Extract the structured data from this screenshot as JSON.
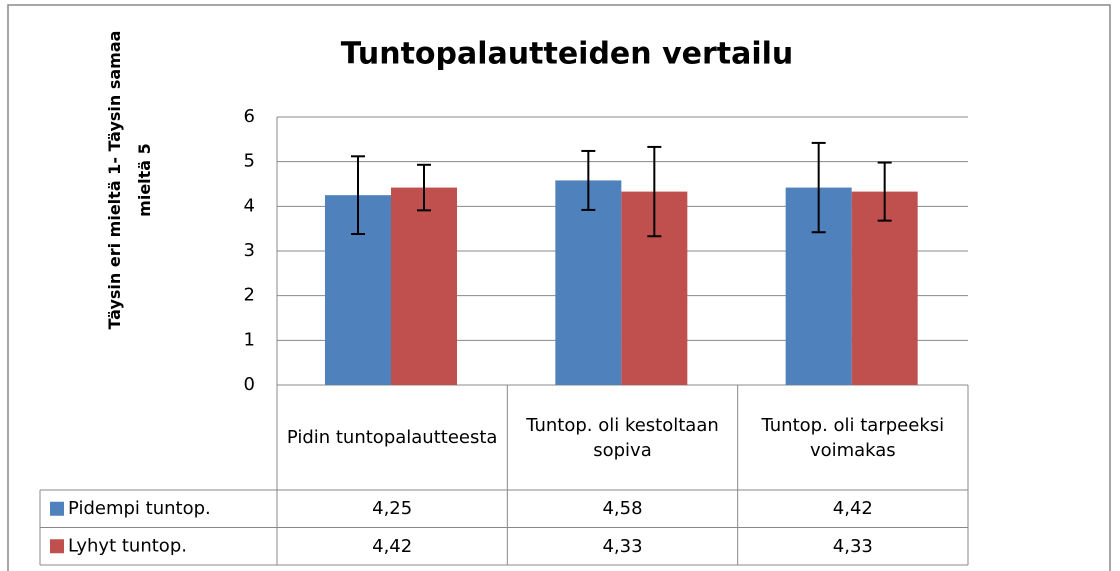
{
  "chart_data": {
    "type": "bar",
    "title": "Tuntopalautteiden vertailu",
    "y_label": "Täysin eri mieltä 1- Täysin samaa mieltä 5",
    "categories": [
      "Pidin tuntopalautteesta",
      "Tuntop. oli kestoltaan sopiva",
      "Tuntop. oli tarpeeksi voimakas"
    ],
    "series": [
      {
        "name": "Pidempi tuntop.",
        "color": "#4f81bd",
        "values": [
          4.25,
          4.58,
          4.42
        ],
        "value_labels": [
          "4,25",
          "4,58",
          "4,42"
        ],
        "errors": [
          0.87,
          0.66,
          1.0
        ]
      },
      {
        "name": "Lyhyt tuntop.",
        "color": "#c0504d",
        "values": [
          4.42,
          4.33,
          4.33
        ],
        "value_labels": [
          "4,42",
          "4,33",
          "4,33"
        ],
        "errors": [
          0.51,
          1.0,
          0.65
        ]
      }
    ],
    "ylim": [
      0,
      6
    ],
    "yticks": [
      0,
      1,
      2,
      3,
      4,
      5,
      6
    ],
    "grid": true,
    "data_table": true
  }
}
